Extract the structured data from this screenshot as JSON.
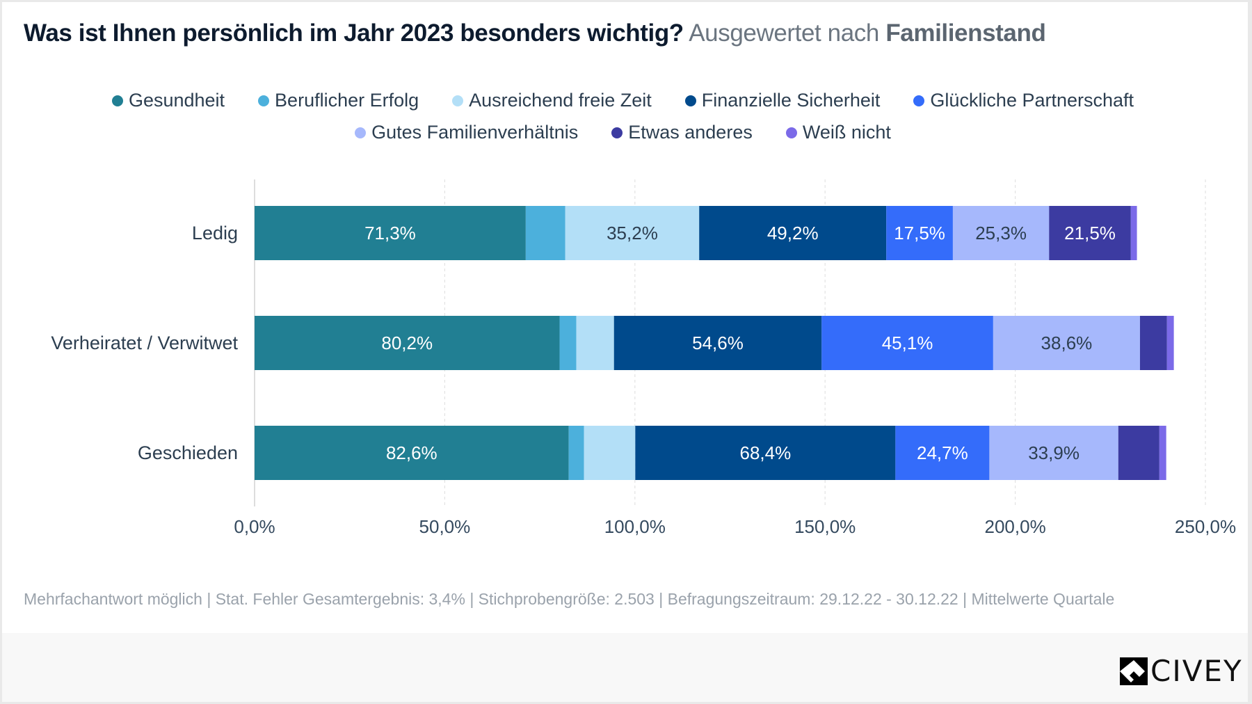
{
  "header": {
    "question": "Was ist Ihnen persönlich im Jahr 2023 besonders wichtig?",
    "subtitle_prefix": "Ausgewertet nach",
    "subtitle_dimension": "Familienstand"
  },
  "legend": [
    {
      "label": "Gesundheit",
      "color": "#217f93"
    },
    {
      "label": "Beruflicher Erfolg",
      "color": "#4cb0dc"
    },
    {
      "label": "Ausreichend freie Zeit",
      "color": "#b3dff7"
    },
    {
      "label": "Finanzielle Sicherheit",
      "color": "#004a8c"
    },
    {
      "label": "Glückliche Partnerschaft",
      "color": "#346cfa"
    },
    {
      "label": "Gutes Familienverhältnis",
      "color": "#a6b8fc"
    },
    {
      "label": "Etwas anderes",
      "color": "#3c3ba1"
    },
    {
      "label": "Weiß nicht",
      "color": "#7b6ae8"
    }
  ],
  "chart_data": {
    "type": "bar",
    "orientation": "horizontal",
    "stacked": true,
    "title": "Was ist Ihnen persönlich im Jahr 2023 besonders wichtig? Ausgewertet nach Familienstand",
    "xlabel": "",
    "ylabel": "",
    "xlim": [
      0,
      250
    ],
    "x_ticks": [
      "0,0%",
      "50,0%",
      "100,0%",
      "150,0%",
      "200,0%",
      "250,0%"
    ],
    "x_tick_values": [
      0,
      50,
      100,
      150,
      200,
      250
    ],
    "grid": "vertical-dashed",
    "legend_position": "top-center",
    "categories": [
      "Ledig",
      "Verheiratet / Verwitwet",
      "Geschieden"
    ],
    "series": [
      {
        "name": "Gesundheit",
        "values": [
          71.3,
          80.2,
          82.6
        ],
        "labels": [
          "71,3%",
          "80,2%",
          "82,6%"
        ]
      },
      {
        "name": "Beruflicher Erfolg",
        "values": [
          10.4,
          4.4,
          4.0
        ],
        "labels": [
          "",
          "",
          ""
        ]
      },
      {
        "name": "Ausreichend freie Zeit",
        "values": [
          35.2,
          9.9,
          13.5
        ],
        "labels": [
          "35,2%",
          "",
          ""
        ]
      },
      {
        "name": "Finanzielle Sicherheit",
        "values": [
          49.2,
          54.6,
          68.4
        ],
        "labels": [
          "49,2%",
          "54,6%",
          "68,4%"
        ]
      },
      {
        "name": "Glückliche Partnerschaft",
        "values": [
          17.5,
          45.1,
          24.7
        ],
        "labels": [
          "17,5%",
          "45,1%",
          "24,7%"
        ]
      },
      {
        "name": "Gutes Familienverhältnis",
        "values": [
          25.3,
          38.6,
          33.9
        ],
        "labels": [
          "25,3%",
          "38,6%",
          "33,9%"
        ]
      },
      {
        "name": "Etwas anderes",
        "values": [
          21.5,
          7.1,
          10.8
        ],
        "labels": [
          "21,5%",
          "",
          ""
        ]
      },
      {
        "name": "Weiß nicht",
        "values": [
          1.6,
          1.8,
          1.8
        ],
        "labels": [
          "",
          "",
          ""
        ]
      }
    ],
    "label_text_colors": [
      "#ffffff",
      "#ffffff",
      "#2c3e50",
      "#ffffff",
      "#ffffff",
      "#2c3e50",
      "#ffffff",
      "#ffffff"
    ]
  },
  "footer": {
    "note": "Mehrfachantwort möglich | Stat. Fehler Gesamtergebnis: 3,4% | Stichprobengröße: 2.503 | Befragungszeitraum: 29.12.22 - 30.12.22 | Mittelwerte Quartale",
    "brand": "CIVEY"
  }
}
